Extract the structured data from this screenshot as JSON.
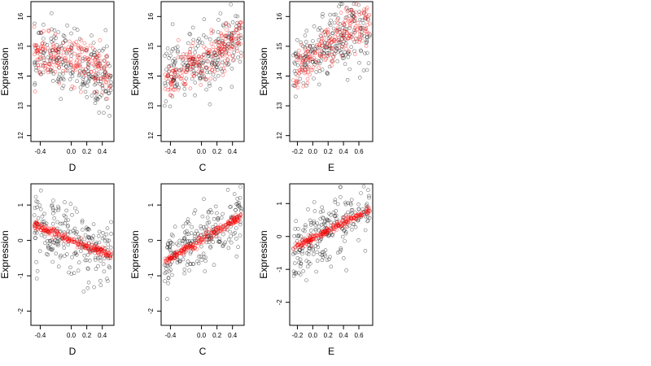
{
  "colors": {
    "observed": "#000000",
    "fitted": "#ff0000",
    "axis": "#000000"
  },
  "chart_data": [
    {
      "type": "scatter",
      "xlabel": "D",
      "ylabel": "Expression",
      "xlim": [
        -0.52,
        0.55
      ],
      "ylim": [
        11.8,
        16.5
      ],
      "xticks": [
        -0.4,
        0.0,
        0.2,
        0.4
      ],
      "xtick_labels": [
        "-0.4",
        "0.0",
        "0.2",
        "0.4"
      ],
      "yticks": [
        12,
        13,
        14,
        15,
        16
      ],
      "ytick_labels": [
        "12",
        "13",
        "14",
        "15",
        "16"
      ],
      "fitted_trend": "flat-decreasing",
      "points_x": [
        -0.45,
        -0.3,
        -0.2,
        -0.05,
        0.0,
        0.1,
        0.2,
        0.3,
        0.4,
        0.5
      ],
      "observed_center": [
        14.6,
        14.7,
        14.6,
        14.5,
        14.6,
        14.5,
        14.3,
        14.1,
        14.0,
        13.9
      ],
      "fitted_center": [
        14.7,
        14.7,
        14.6,
        14.6,
        14.5,
        14.5,
        14.4,
        14.3,
        14.2,
        14.1
      ]
    },
    {
      "type": "scatter",
      "xlabel": "C",
      "ylabel": "Expression",
      "xlim": [
        -0.52,
        0.55
      ],
      "ylim": [
        11.8,
        16.5
      ],
      "xticks": [
        -0.4,
        0.0,
        0.2,
        0.4
      ],
      "xtick_labels": [
        "-0.4",
        "0.0",
        "0.2",
        "0.4"
      ],
      "yticks": [
        12,
        13,
        14,
        15,
        16
      ],
      "ytick_labels": [
        "12",
        "13",
        "14",
        "15",
        "16"
      ],
      "fitted_trend": "increasing",
      "points_x": [
        -0.45,
        -0.3,
        -0.2,
        -0.05,
        0.0,
        0.1,
        0.2,
        0.3,
        0.4,
        0.5
      ],
      "observed_center": [
        14.0,
        14.1,
        14.2,
        14.4,
        14.5,
        14.6,
        14.8,
        15.0,
        15.1,
        15.3
      ],
      "fitted_center": [
        13.9,
        14.1,
        14.2,
        14.4,
        14.4,
        14.6,
        14.8,
        14.9,
        15.1,
        15.4
      ]
    },
    {
      "type": "scatter",
      "xlabel": "E",
      "ylabel": "Expression",
      "xlim": [
        -0.3,
        0.78
      ],
      "ylim": [
        11.8,
        16.5
      ],
      "xticks": [
        -0.2,
        0.0,
        0.2,
        0.4,
        0.6
      ],
      "xtick_labels": [
        "-0.2",
        "0.0",
        "0.2",
        "0.4",
        "0.6"
      ],
      "yticks": [
        12,
        13,
        14,
        15,
        16
      ],
      "ytick_labels": [
        "12",
        "13",
        "14",
        "15",
        "16"
      ],
      "fitted_trend": "increasing",
      "points_x": [
        -0.25,
        -0.2,
        -0.1,
        0.0,
        0.1,
        0.2,
        0.35,
        0.5,
        0.6,
        0.7
      ],
      "observed_center": [
        14.2,
        14.4,
        14.5,
        14.6,
        14.8,
        15.0,
        15.3,
        15.5,
        15.4,
        15.3
      ],
      "fitted_center": [
        14.0,
        14.2,
        14.4,
        14.6,
        14.8,
        15.0,
        15.3,
        15.6,
        15.7,
        15.8
      ]
    },
    {
      "type": "scatter",
      "xlabel": "D",
      "ylabel": "Expression",
      "xlim": [
        -0.52,
        0.55
      ],
      "ylim": [
        -2.4,
        1.6
      ],
      "xticks": [
        -0.4,
        0.0,
        0.2,
        0.4
      ],
      "xtick_labels": [
        "-0.4",
        "0.0",
        "0.2",
        "0.4"
      ],
      "yticks": [
        -2,
        -1,
        0,
        1
      ],
      "ytick_labels": [
        "-2",
        "-1",
        "0",
        "1"
      ],
      "fitted_trend": "decreasing",
      "fitted_line": [
        [
          -0.48,
          0.45
        ],
        [
          0.52,
          -0.45
        ]
      ]
    },
    {
      "type": "scatter",
      "xlabel": "C",
      "ylabel": "Expression",
      "xlim": [
        -0.52,
        0.55
      ],
      "ylim": [
        -2.4,
        1.6
      ],
      "xticks": [
        -0.4,
        0.0,
        0.2,
        0.4
      ],
      "xtick_labels": [
        "-0.4",
        "0.0",
        "0.2",
        "0.4"
      ],
      "yticks": [
        -2,
        -1,
        0,
        1
      ],
      "ytick_labels": [
        "-2",
        "-1",
        "0",
        "1"
      ],
      "fitted_trend": "increasing",
      "fitted_line": [
        [
          -0.47,
          -0.6
        ],
        [
          0.5,
          0.65
        ]
      ]
    },
    {
      "type": "scatter",
      "xlabel": "E",
      "ylabel": "Expression",
      "xlim": [
        -0.3,
        0.78
      ],
      "ylim": [
        -2.7,
        1.6
      ],
      "xticks": [
        -0.2,
        0.0,
        0.2,
        0.4,
        0.6
      ],
      "xtick_labels": [
        "-0.2",
        "0.0",
        "0.2",
        "0.4",
        "0.6"
      ],
      "yticks": [
        -2,
        -1,
        0,
        1
      ],
      "ytick_labels": [
        "-2",
        "-1",
        "0",
        "1"
      ],
      "fitted_trend": "increasing",
      "fitted_line": [
        [
          -0.25,
          -0.35
        ],
        [
          0.72,
          0.8
        ]
      ]
    }
  ]
}
